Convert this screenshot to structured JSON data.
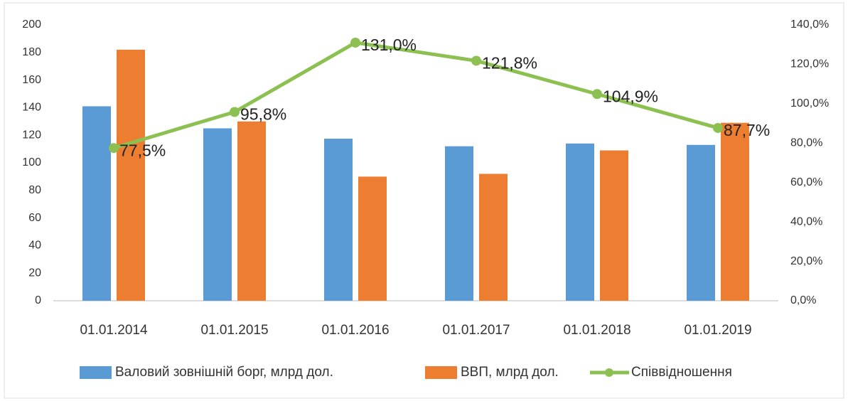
{
  "chart_data": {
    "type": "bar_line",
    "categories": [
      "01.01.2014",
      "01.01.2015",
      "01.01.2016",
      "01.01.2017",
      "01.01.2018",
      "01.01.2019"
    ],
    "series": [
      {
        "name": "Валовий зовнішній борг, млрд дол.",
        "type": "bar",
        "color": "#5b9bd5",
        "values": [
          141,
          125,
          117.5,
          112,
          114,
          113
        ]
      },
      {
        "name": "ВВП, млрд дол.",
        "type": "bar",
        "color": "#ed7d31",
        "values": [
          182,
          130,
          90,
          92,
          109,
          129
        ]
      },
      {
        "name": "Співвідношення",
        "type": "line",
        "axis": "y2",
        "color": "#8cc152",
        "values": [
          77.5,
          95.8,
          131.0,
          121.8,
          104.9,
          87.7
        ],
        "value_labels": [
          "77,5%",
          "95,8%",
          "131,0%",
          "121,8%",
          "104,9%",
          "87,7%"
        ]
      }
    ],
    "ylim": [
      0,
      200
    ],
    "yticks": [
      0,
      20,
      40,
      60,
      80,
      100,
      120,
      140,
      160,
      180,
      200
    ],
    "y2lim": [
      0,
      140
    ],
    "y2ticks": [
      {
        "value": 0,
        "label": "0,0%"
      },
      {
        "value": 20,
        "label": "20,0%"
      },
      {
        "value": 40,
        "label": "40,0%"
      },
      {
        "value": 60,
        "label": "60,0%"
      },
      {
        "value": 80,
        "label": "80,0%"
      },
      {
        "value": 100,
        "label": "100,0%"
      },
      {
        "value": 120,
        "label": "120,0%"
      },
      {
        "value": 140,
        "label": "140,0%"
      }
    ],
    "legend": "bottom"
  }
}
